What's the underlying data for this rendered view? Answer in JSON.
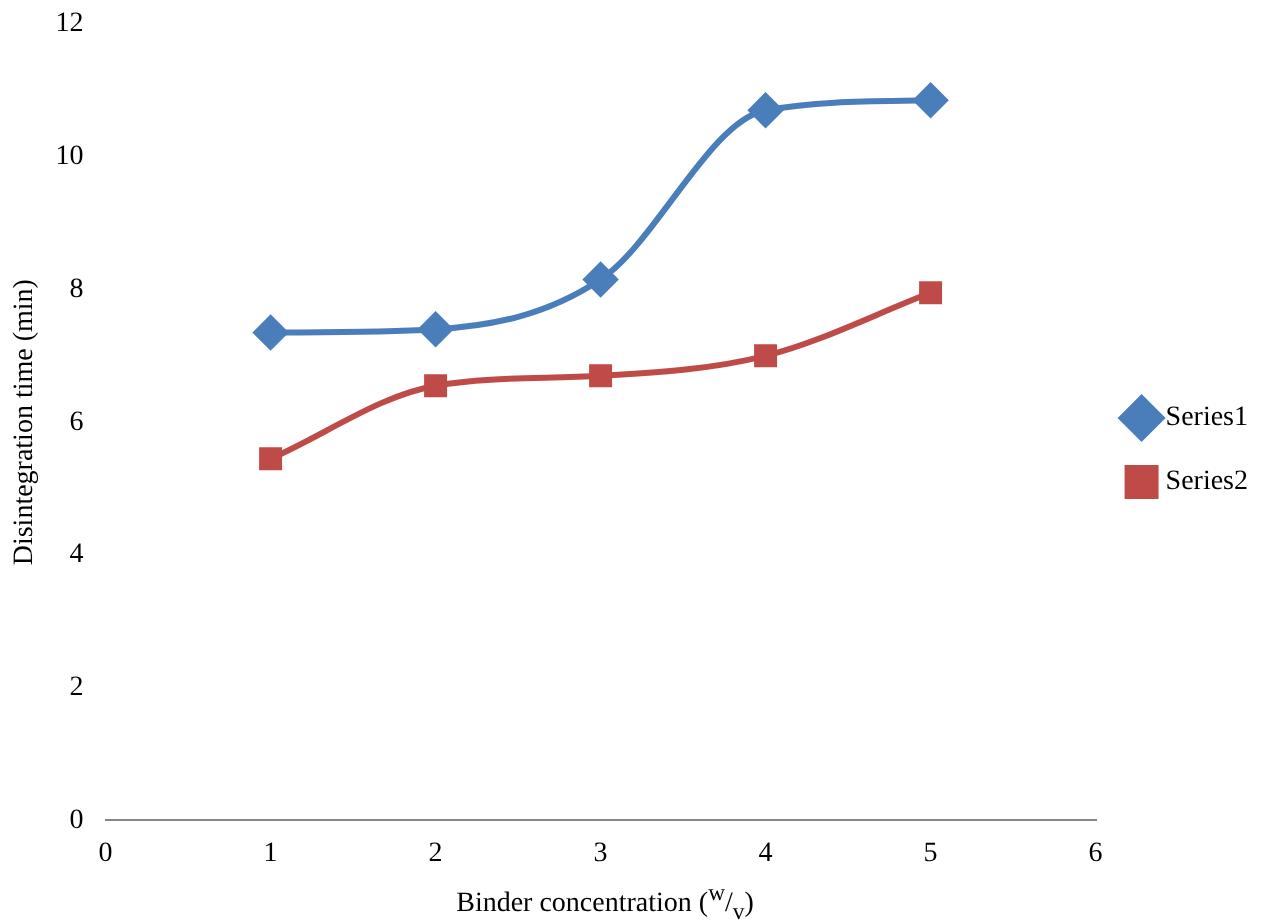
{
  "chart_data": {
    "type": "line",
    "xlabel": "Binder concentration ($^{w}$/$_{v}$)",
    "ylabel": "Disintegration time (min)",
    "x": [
      1,
      2,
      3,
      4,
      5
    ],
    "series": [
      {
        "name": "Series1",
        "color": "#4a7ebb",
        "marker": "diamond",
        "values": [
          7.35,
          7.4,
          8.15,
          10.7,
          10.85
        ]
      },
      {
        "name": "Series2",
        "color": "#be4b48",
        "marker": "square",
        "values": [
          5.45,
          6.55,
          6.7,
          7.0,
          7.95
        ]
      }
    ],
    "xlim": [
      0,
      6
    ],
    "xticks": [
      0,
      1,
      2,
      3,
      4,
      5,
      6
    ],
    "ylim": [
      0,
      12
    ],
    "yticks": [
      0,
      2,
      4,
      6,
      8,
      10,
      12
    ],
    "grid": false,
    "legend": "right",
    "line_style": "solid"
  }
}
